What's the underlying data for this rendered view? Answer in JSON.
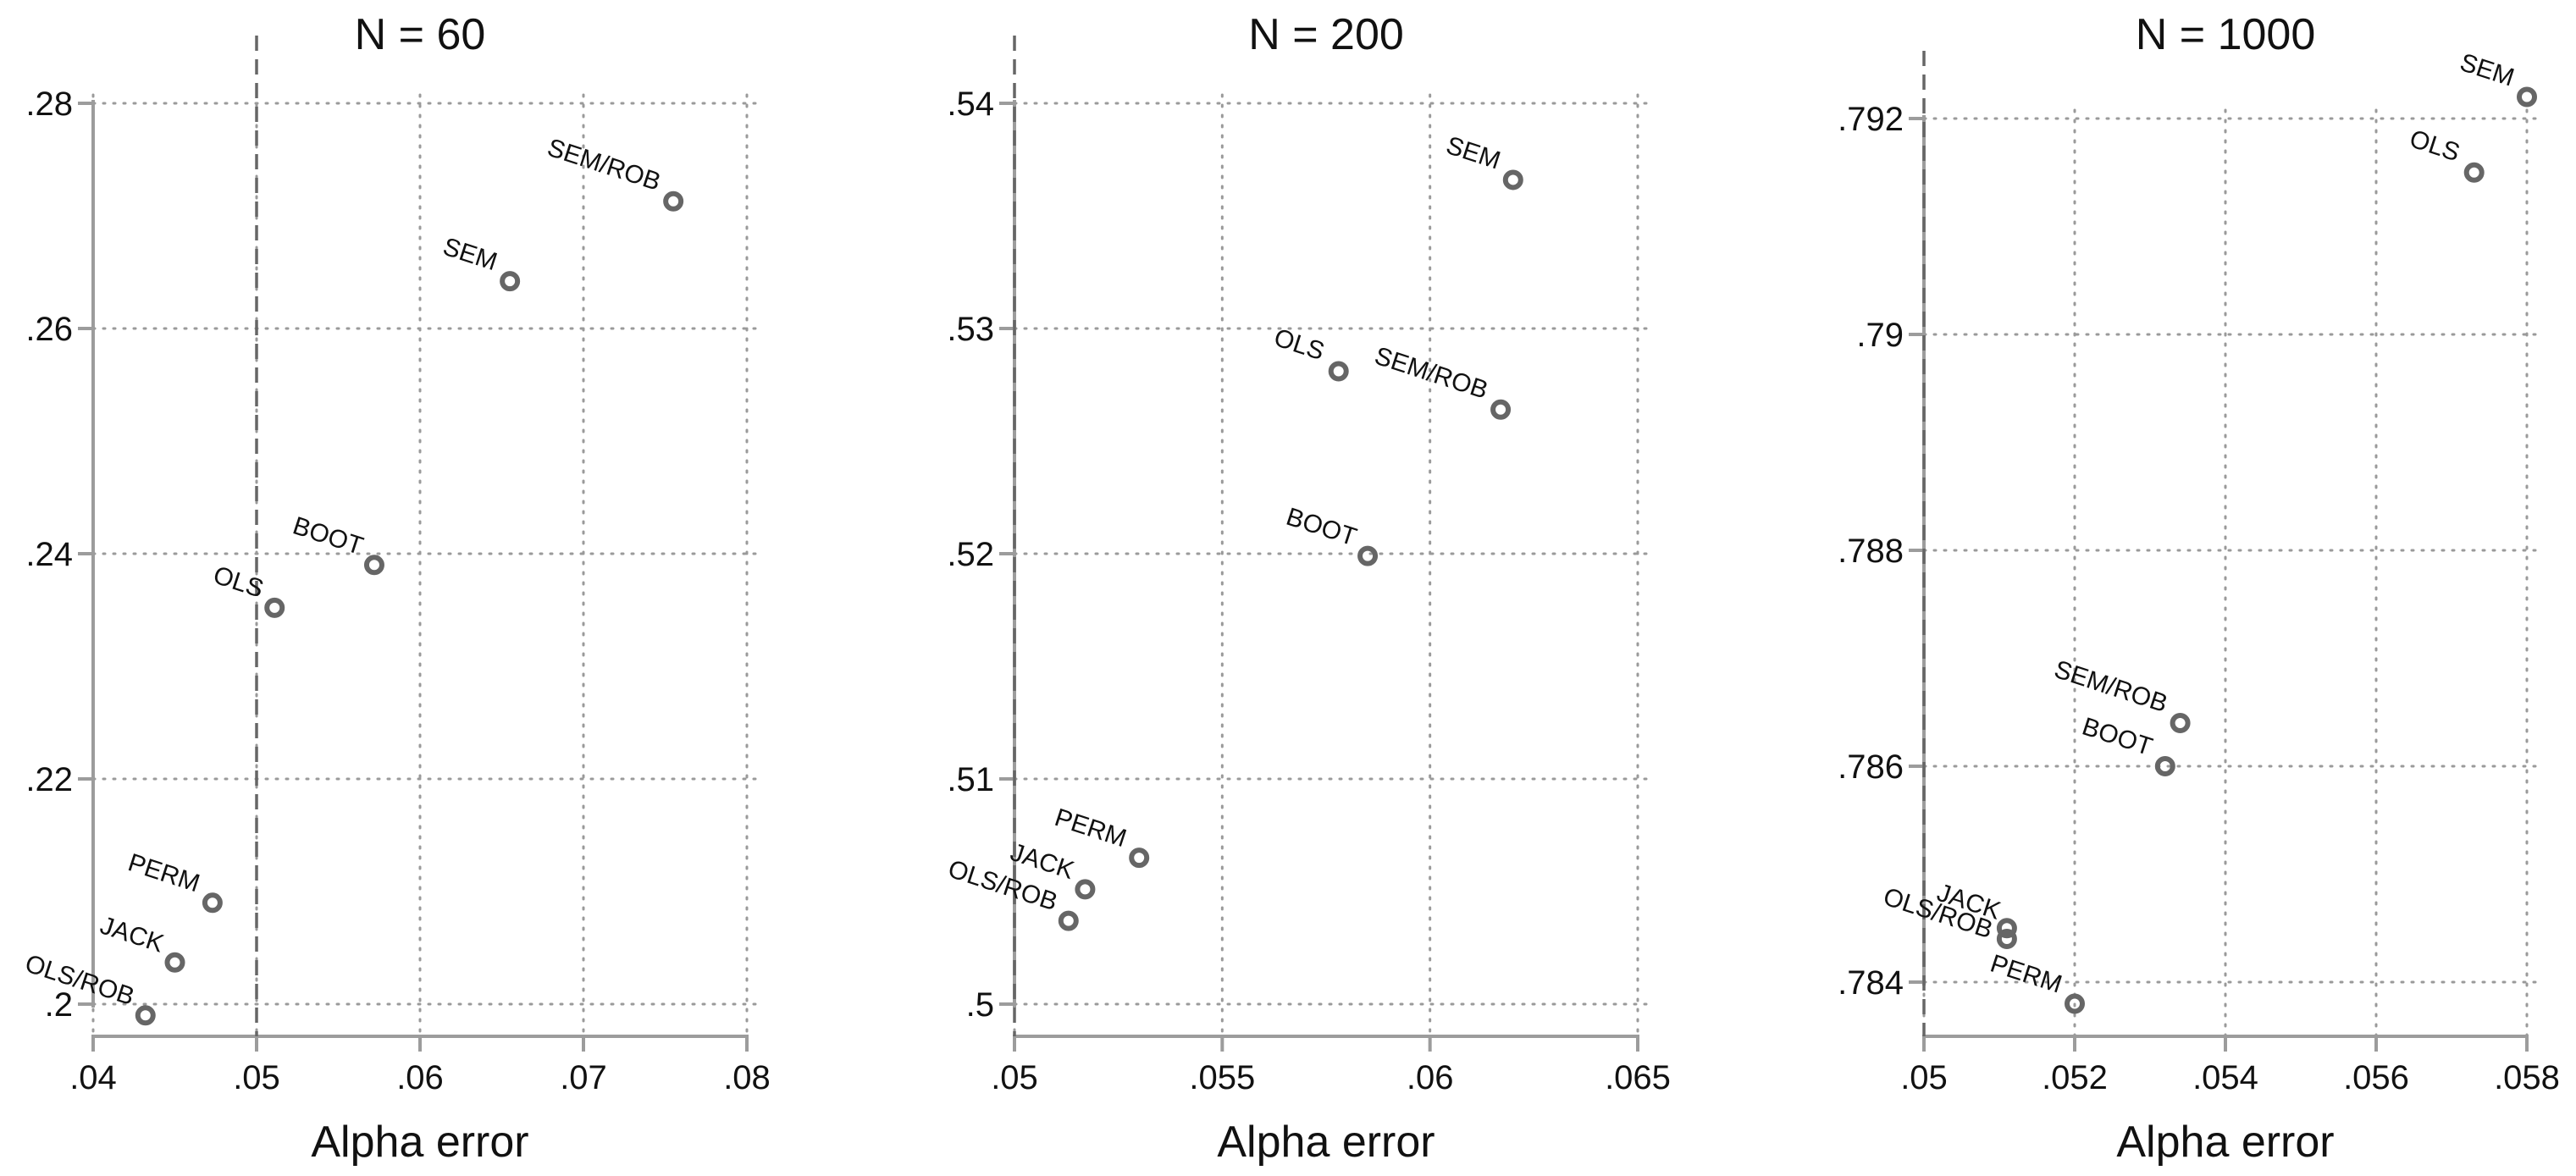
{
  "chart_data": [
    {
      "type": "scatter",
      "title": "N = 60",
      "xlabel": "Alpha error",
      "ylabel": "",
      "xlim": [
        0.04,
        0.08
      ],
      "ylim": [
        0.2,
        0.28
      ],
      "xticks": [
        0.04,
        0.05,
        0.06,
        0.07,
        0.08
      ],
      "xtick_labels": [
        ".04",
        ".05",
        ".06",
        ".07",
        ".08"
      ],
      "yticks": [
        0.2,
        0.22,
        0.24,
        0.26,
        0.28
      ],
      "ytick_labels": [
        ".2",
        ".22",
        ".24",
        ".26",
        ".28"
      ],
      "reference_line_x": 0.05,
      "grid": true,
      "points": [
        {
          "label": "SEM/ROB",
          "x": 0.0755,
          "y": 0.2713
        },
        {
          "label": "SEM",
          "x": 0.0655,
          "y": 0.2642
        },
        {
          "label": "BOOT",
          "x": 0.0572,
          "y": 0.239
        },
        {
          "label": "OLS",
          "x": 0.0511,
          "y": 0.2352
        },
        {
          "label": "PERM",
          "x": 0.0473,
          "y": 0.209
        },
        {
          "label": "JACK",
          "x": 0.045,
          "y": 0.2037
        },
        {
          "label": "OLS/ROB",
          "x": 0.0432,
          "y": 0.199
        }
      ]
    },
    {
      "type": "scatter",
      "title": "N = 200",
      "xlabel": "Alpha error",
      "ylabel": "",
      "xlim": [
        0.05,
        0.065
      ],
      "ylim": [
        0.5,
        0.54
      ],
      "xticks": [
        0.05,
        0.055,
        0.06,
        0.065
      ],
      "xtick_labels": [
        ".05",
        ".055",
        ".06",
        ".065"
      ],
      "yticks": [
        0.5,
        0.51,
        0.52,
        0.53,
        0.54
      ],
      "ytick_labels": [
        ".5",
        ".51",
        ".52",
        ".53",
        ".54"
      ],
      "reference_line_x": 0.05,
      "grid": true,
      "points": [
        {
          "label": "SEM",
          "x": 0.062,
          "y": 0.5366
        },
        {
          "label": "OLS",
          "x": 0.0578,
          "y": 0.5281
        },
        {
          "label": "SEM/ROB",
          "x": 0.0617,
          "y": 0.5264
        },
        {
          "label": "BOOT",
          "x": 0.0585,
          "y": 0.5199
        },
        {
          "label": "PERM",
          "x": 0.053,
          "y": 0.5065
        },
        {
          "label": "JACK",
          "x": 0.0517,
          "y": 0.5051
        },
        {
          "label": "OLS/ROB",
          "x": 0.0513,
          "y": 0.5037
        }
      ]
    },
    {
      "type": "scatter",
      "title": "N = 1000",
      "xlabel": "Alpha error",
      "ylabel": "",
      "xlim": [
        0.05,
        0.058
      ],
      "ylim": [
        0.784,
        0.792
      ],
      "xticks": [
        0.05,
        0.052,
        0.054,
        0.056,
        0.058
      ],
      "xtick_labels": [
        ".05",
        ".052",
        ".054",
        ".056",
        ".058"
      ],
      "yticks": [
        0.784,
        0.786,
        0.788,
        0.79,
        0.792
      ],
      "ytick_labels": [
        ".784",
        ".786",
        ".788",
        ".79",
        ".792"
      ],
      "reference_line_x": 0.05,
      "grid": true,
      "points": [
        {
          "label": "SEM",
          "x": 0.058,
          "y": 0.7922
        },
        {
          "label": "OLS",
          "x": 0.0573,
          "y": 0.7915
        },
        {
          "label": "SEM/ROB",
          "x": 0.0534,
          "y": 0.7864
        },
        {
          "label": "BOOT",
          "x": 0.0532,
          "y": 0.786
        },
        {
          "label": "JACK",
          "x": 0.0511,
          "y": 0.7845
        },
        {
          "label": "OLS/ROB",
          "x": 0.0511,
          "y": 0.7844
        },
        {
          "label": "PERM",
          "x": 0.052,
          "y": 0.7838
        }
      ]
    }
  ]
}
